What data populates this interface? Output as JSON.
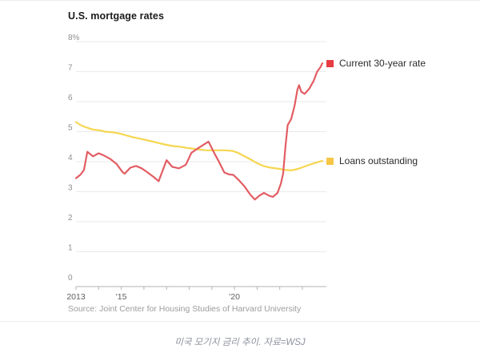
{
  "page": {
    "title": "U.S. mortgage rates",
    "source": "Source: Joint Center for Housing Studies of Harvard University",
    "caption": "미국 모기지 금리 추이. 자료=WSJ"
  },
  "legend": [
    {
      "label": "Current 30-year rate",
      "color": "#e63b41"
    },
    {
      "label": "Loans outstanding",
      "color": "#f6c646"
    }
  ],
  "colors": {
    "grid": "#eaeaea",
    "axis": "#b3b3b3",
    "current_rate_line": "#e25d63",
    "loans_line": "#f6d650",
    "title_text": "#1b1b1b",
    "caption_text": "#8d939d"
  },
  "chart_data": {
    "type": "line",
    "title": "U.S. mortgage rates",
    "xlabel": "",
    "ylabel": "",
    "y_unit": "%",
    "ylim": [
      0,
      8
    ],
    "xlim": [
      2013,
      2023.95
    ],
    "grid": "horizontal",
    "legend_position": "right",
    "yticks": [
      0,
      1,
      2,
      3,
      4,
      5,
      6,
      7,
      8
    ],
    "ytick_labels": [
      "0",
      "1",
      "2",
      "3",
      "4",
      "5",
      "6",
      "7",
      "8%"
    ],
    "xticks": [
      2013,
      2014,
      2015,
      2016,
      2017,
      2018,
      2019,
      2020,
      2021,
      2022,
      2023
    ],
    "xtick_labels": [
      "2013",
      "",
      "'15",
      "",
      "",
      "",
      "",
      "'20",
      "",
      "",
      ""
    ],
    "series": [
      {
        "id": "current-30-year-rate",
        "name": "Current 30-year rate",
        "color": "#e25d63",
        "points": [
          [
            2013.0,
            3.45
          ],
          [
            2013.2,
            3.57
          ],
          [
            2013.35,
            3.72
          ],
          [
            2013.5,
            4.33
          ],
          [
            2013.75,
            4.18
          ],
          [
            2014.0,
            4.28
          ],
          [
            2014.2,
            4.22
          ],
          [
            2014.5,
            4.1
          ],
          [
            2014.8,
            3.92
          ],
          [
            2015.05,
            3.66
          ],
          [
            2015.15,
            3.6
          ],
          [
            2015.4,
            3.8
          ],
          [
            2015.65,
            3.86
          ],
          [
            2015.9,
            3.78
          ],
          [
            2016.15,
            3.65
          ],
          [
            2016.45,
            3.48
          ],
          [
            2016.65,
            3.35
          ],
          [
            2017.0,
            4.05
          ],
          [
            2017.25,
            3.83
          ],
          [
            2017.55,
            3.78
          ],
          [
            2017.85,
            3.9
          ],
          [
            2018.1,
            4.3
          ],
          [
            2018.4,
            4.45
          ],
          [
            2018.6,
            4.55
          ],
          [
            2018.85,
            4.67
          ],
          [
            2019.1,
            4.3
          ],
          [
            2019.3,
            4.02
          ],
          [
            2019.55,
            3.64
          ],
          [
            2019.75,
            3.58
          ],
          [
            2019.95,
            3.56
          ],
          [
            2020.2,
            3.38
          ],
          [
            2020.45,
            3.17
          ],
          [
            2020.7,
            2.9
          ],
          [
            2020.9,
            2.74
          ],
          [
            2021.1,
            2.87
          ],
          [
            2021.3,
            2.96
          ],
          [
            2021.55,
            2.86
          ],
          [
            2021.7,
            2.83
          ],
          [
            2021.9,
            2.96
          ],
          [
            2022.05,
            3.27
          ],
          [
            2022.15,
            3.6
          ],
          [
            2022.25,
            4.5
          ],
          [
            2022.35,
            5.22
          ],
          [
            2022.5,
            5.42
          ],
          [
            2022.65,
            5.85
          ],
          [
            2022.78,
            6.4
          ],
          [
            2022.85,
            6.55
          ],
          [
            2022.95,
            6.33
          ],
          [
            2023.1,
            6.26
          ],
          [
            2023.3,
            6.43
          ],
          [
            2023.5,
            6.7
          ],
          [
            2023.65,
            7.0
          ],
          [
            2023.8,
            7.15
          ],
          [
            2023.88,
            7.28
          ]
        ]
      },
      {
        "id": "loans-outstanding",
        "name": "Loans outstanding",
        "color": "#f6d650",
        "points": [
          [
            2013.0,
            5.32
          ],
          [
            2013.25,
            5.2
          ],
          [
            2013.5,
            5.13
          ],
          [
            2013.75,
            5.07
          ],
          [
            2014.0,
            5.05
          ],
          [
            2014.3,
            5.0
          ],
          [
            2014.6,
            4.98
          ],
          [
            2014.9,
            4.94
          ],
          [
            2015.2,
            4.88
          ],
          [
            2015.5,
            4.82
          ],
          [
            2015.8,
            4.77
          ],
          [
            2016.1,
            4.72
          ],
          [
            2016.4,
            4.67
          ],
          [
            2016.7,
            4.61
          ],
          [
            2017.0,
            4.56
          ],
          [
            2017.3,
            4.52
          ],
          [
            2017.6,
            4.5
          ],
          [
            2017.9,
            4.46
          ],
          [
            2018.2,
            4.43
          ],
          [
            2018.5,
            4.4
          ],
          [
            2018.8,
            4.38
          ],
          [
            2019.2,
            4.38
          ],
          [
            2019.6,
            4.38
          ],
          [
            2019.9,
            4.36
          ],
          [
            2020.15,
            4.3
          ],
          [
            2020.4,
            4.2
          ],
          [
            2020.7,
            4.08
          ],
          [
            2021.0,
            3.95
          ],
          [
            2021.3,
            3.85
          ],
          [
            2021.6,
            3.8
          ],
          [
            2021.9,
            3.77
          ],
          [
            2022.2,
            3.73
          ],
          [
            2022.5,
            3.71
          ],
          [
            2022.8,
            3.76
          ],
          [
            2023.1,
            3.84
          ],
          [
            2023.4,
            3.92
          ],
          [
            2023.65,
            3.98
          ],
          [
            2023.88,
            4.03
          ]
        ]
      }
    ]
  }
}
